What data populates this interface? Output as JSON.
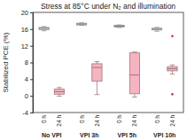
{
  "chart_data": {
    "type": "box",
    "title": "Stress at 85°C under N₂ and illumination",
    "y_label": "Stabilized PCE (%)",
    "ylim": [
      -4,
      20
    ],
    "yticks": [
      -4,
      0,
      4,
      8,
      12,
      16,
      20
    ],
    "colors": [
      "#d4d4d4",
      "#f6b3c0"
    ],
    "groups": [
      {
        "name": "No VPI",
        "categories": [
          "0 h",
          "24 h"
        ],
        "boxes": [
          {
            "min": 15.6,
            "q1": 15.9,
            "median": 16.2,
            "q3": 16.4,
            "max": 16.6,
            "outliers": []
          },
          {
            "min": -0.1,
            "q1": 0.4,
            "median": 1.0,
            "q3": 1.6,
            "max": 2.0,
            "outliers": []
          }
        ]
      },
      {
        "name": "VPI 3h",
        "categories": [
          "0 h",
          "24 h"
        ],
        "boxes": [
          {
            "min": 16.9,
            "q1": 17.0,
            "median": 17.2,
            "q3": 17.4,
            "max": 17.5,
            "outliers": []
          },
          {
            "min": 0.3,
            "q1": 3.5,
            "median": 6.8,
            "q3": 7.7,
            "max": 8.2,
            "outliers": []
          }
        ]
      },
      {
        "name": "VPI 5h",
        "categories": [
          "0 h",
          "24 h"
        ],
        "boxes": [
          {
            "min": 16.4,
            "q1": 16.5,
            "median": 16.7,
            "q3": 16.9,
            "max": 17.0,
            "outliers": []
          },
          {
            "min": -0.3,
            "q1": 0.5,
            "median": 5.0,
            "q3": 10.3,
            "max": 10.5,
            "outliers": []
          }
        ]
      },
      {
        "name": "VPI 10h",
        "categories": [
          "0 h",
          "24 h"
        ],
        "boxes": [
          {
            "min": 15.5,
            "q1": 15.8,
            "median": 16.0,
            "q3": 16.2,
            "max": 16.4,
            "outliers": []
          },
          {
            "min": 5.2,
            "q1": 6.0,
            "median": 6.5,
            "q3": 7.0,
            "max": 7.4,
            "outliers": [
              14.3,
              0.4
            ]
          }
        ]
      }
    ]
  }
}
